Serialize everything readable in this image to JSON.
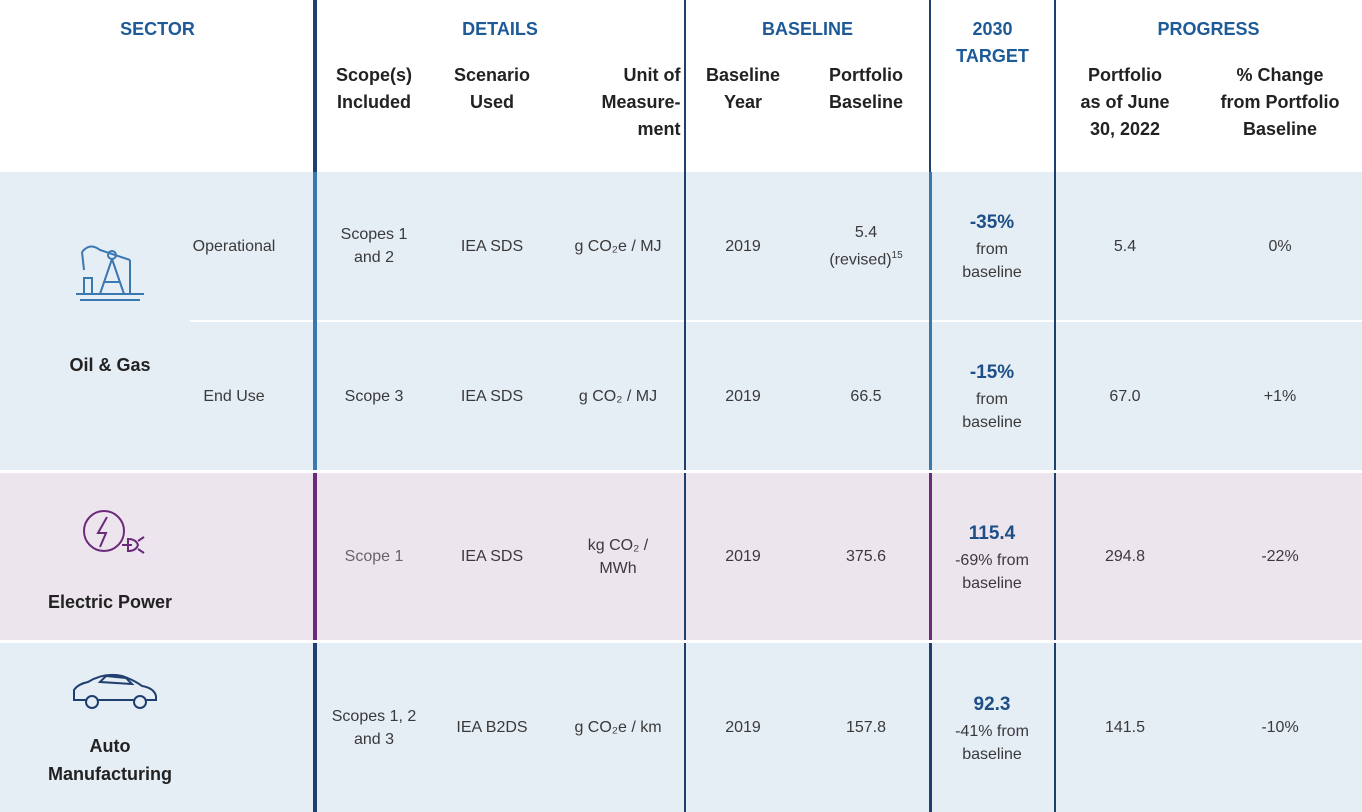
{
  "header": {
    "groups": [
      "SECTOR",
      "DETAILS",
      "BASELINE",
      "2030\nTARGET",
      "PROGRESS"
    ],
    "columns": [
      "Scope(s)\nIncluded",
      "Scenario\nUsed",
      "Unit of\nMeasure-\nment",
      "Baseline\nYear",
      "Portfolio\nBaseline",
      "Portfolio\nas of June\n30, 2022",
      "% Change\nfrom Portfolio\nBaseline"
    ]
  },
  "sectors": [
    {
      "name": "Oil & Gas",
      "rows": [
        {
          "segment": "Operational",
          "scope": "Scopes 1\nand 2",
          "scenario": "IEA SDS",
          "unit": "g CO₂e / MJ",
          "baseline_year": "2019",
          "portfolio_baseline": "5.4",
          "baseline_note": "(revised)",
          "footnote": "15",
          "target": "-35%",
          "target_note": "from\nbaseline",
          "portfolio_2022": "5.4",
          "change": "0%"
        },
        {
          "segment": "End Use",
          "scope": "Scope 3",
          "scenario": "IEA SDS",
          "unit": "g CO₂ / MJ",
          "baseline_year": "2019",
          "portfolio_baseline": "66.5",
          "target": "-15%",
          "target_note": "from\nbaseline",
          "portfolio_2022": "67.0",
          "change": "+1%"
        }
      ]
    },
    {
      "name": "Electric Power",
      "rows": [
        {
          "scope": "Scope 1",
          "scenario": "IEA SDS",
          "unit": "kg CO₂ /\nMWh",
          "baseline_year": "2019",
          "portfolio_baseline": "375.6",
          "target": "115.4",
          "target_note": "-69% from\nbaseline",
          "portfolio_2022": "294.8",
          "change": "-22%"
        }
      ]
    },
    {
      "name": "Auto\nManufacturing",
      "rows": [
        {
          "scope": "Scopes 1, 2\nand 3",
          "scenario": "IEA B2DS",
          "unit": "g CO₂e / km",
          "baseline_year": "2019",
          "portfolio_baseline": "157.8",
          "target": "92.3",
          "target_note": "-41% from\nbaseline",
          "portfolio_2022": "141.5",
          "change": "-10%"
        }
      ]
    }
  ]
}
